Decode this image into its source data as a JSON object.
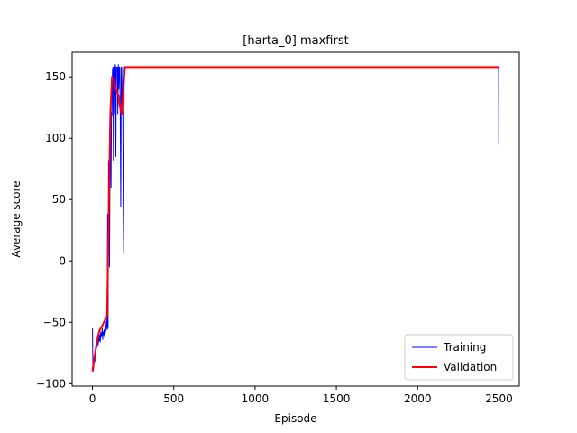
{
  "chart_data": {
    "type": "line",
    "title": "[harta_0] maxfirst",
    "xlabel": "Episode",
    "ylabel": "Average score",
    "xlim": [
      -125,
      2625
    ],
    "ylim": [
      -102,
      170
    ],
    "xticks": [
      0,
      500,
      1000,
      1500,
      2000,
      2500
    ],
    "yticks": [
      -100,
      -50,
      0,
      50,
      100,
      150
    ],
    "grid": false,
    "legend_position": "lower-right",
    "series": [
      {
        "name": "Training",
        "color": "#0000ff",
        "line_width": 1,
        "x": [
          0,
          3,
          6,
          9,
          12,
          15,
          18,
          21,
          24,
          27,
          30,
          33,
          36,
          39,
          42,
          45,
          48,
          51,
          54,
          57,
          60,
          63,
          66,
          69,
          72,
          75,
          78,
          81,
          84,
          87,
          90,
          93,
          96,
          99,
          102,
          105,
          108,
          111,
          114,
          117,
          120,
          123,
          126,
          129,
          132,
          135,
          138,
          141,
          144,
          147,
          150,
          153,
          156,
          159,
          162,
          165,
          168,
          171,
          174,
          177,
          180,
          183,
          186,
          189,
          192,
          195,
          198,
          201,
          204,
          210,
          220,
          250,
          300,
          400,
          500,
          600,
          700,
          800,
          900,
          1000,
          1100,
          1200,
          1300,
          1400,
          1500,
          1600,
          1700,
          1800,
          1900,
          2000,
          2100,
          2200,
          2300,
          2400,
          2480,
          2495,
          2498,
          2499,
          2500
        ],
        "y": [
          -55,
          -90,
          -88,
          -85,
          -80,
          -82,
          -75,
          -70,
          -72,
          -68,
          -70,
          -65,
          -68,
          -62,
          -65,
          -60,
          -66,
          -58,
          -62,
          -60,
          -55,
          -64,
          -58,
          -60,
          -56,
          -62,
          -55,
          -58,
          -52,
          -48,
          -56,
          38,
          -55,
          82,
          40,
          -5,
          85,
          120,
          60,
          121,
          118,
          155,
          158,
          82,
          158,
          120,
          158,
          160,
          85,
          158,
          158,
          158,
          120,
          160,
          140,
          158,
          158,
          120,
          44,
          158,
          130,
          120,
          158,
          50,
          7,
          158,
          158,
          158,
          158,
          158,
          158,
          158,
          158,
          158,
          158,
          158,
          158,
          158,
          158,
          158,
          158,
          158,
          158,
          158,
          158,
          158,
          158,
          158,
          158,
          158,
          158,
          158,
          158,
          158,
          158,
          158,
          158,
          95,
          158
        ]
      },
      {
        "name": "Validation",
        "color": "#ff0000",
        "line_width": 2,
        "x": [
          0,
          10,
          20,
          30,
          40,
          50,
          60,
          70,
          80,
          90,
          100,
          110,
          120,
          130,
          140,
          150,
          160,
          170,
          180,
          190,
          200,
          210,
          220,
          300,
          400,
          500,
          600,
          700,
          800,
          900,
          1000,
          1100,
          1200,
          1300,
          1400,
          1500,
          1600,
          1700,
          1800,
          1900,
          2000,
          2100,
          2200,
          2300,
          2400,
          2500
        ],
        "y": [
          -90,
          -80,
          -72,
          -64,
          -58,
          -55,
          -53,
          -50,
          -47,
          -45,
          37,
          120,
          150,
          148,
          142,
          138,
          135,
          125,
          120,
          140,
          158,
          158,
          158,
          158,
          158,
          158,
          158,
          158,
          158,
          158,
          158,
          158,
          158,
          158,
          158,
          158,
          158,
          158,
          158,
          158,
          158,
          158,
          158,
          158,
          158,
          158
        ]
      }
    ]
  }
}
